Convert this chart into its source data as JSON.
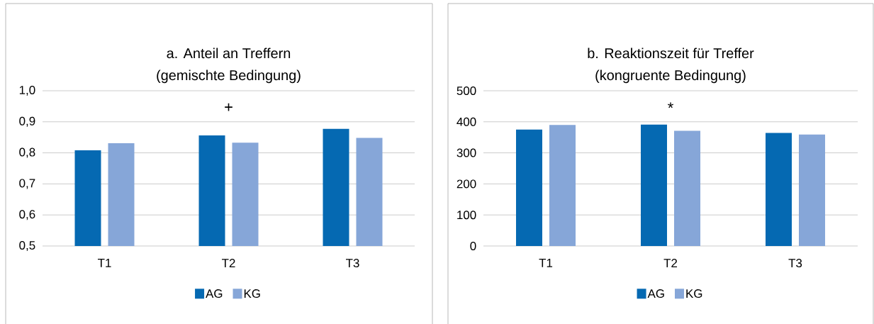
{
  "chart_data": [
    {
      "type": "bar",
      "title": "a. Anteil an Treffern",
      "subtitle": "(gemischte Bedingung)",
      "categories": [
        "T1",
        "T2",
        "T3"
      ],
      "series": [
        {
          "name": "AG",
          "color": "#0569b2",
          "values": [
            0.808,
            0.856,
            0.877
          ]
        },
        {
          "name": "KG",
          "color": "#86a6d8",
          "values": [
            0.831,
            0.833,
            0.848
          ]
        }
      ],
      "ylim": [
        0.5,
        1.0
      ],
      "yticks": [
        {
          "value": 0.5,
          "label": "0,5"
        },
        {
          "value": 0.6,
          "label": "0,6"
        },
        {
          "value": 0.7,
          "label": "0,7"
        },
        {
          "value": 0.8,
          "label": "0,8"
        },
        {
          "value": 0.9,
          "label": "0,9"
        },
        {
          "value": 1.0,
          "label": "1,0"
        }
      ],
      "grid": "y",
      "legend": "bottom",
      "annotations": [
        "+"
      ]
    },
    {
      "type": "bar",
      "title": "b. Reaktionszeit für Treffer",
      "subtitle": "(kongruente Bedingung)",
      "categories": [
        "T1",
        "T2",
        "T3"
      ],
      "series": [
        {
          "name": "AG",
          "color": "#0569b2",
          "values": [
            375,
            391,
            364
          ]
        },
        {
          "name": "KG",
          "color": "#86a6d8",
          "values": [
            390,
            371,
            359
          ]
        }
      ],
      "ylim": [
        0,
        500
      ],
      "yticks": [
        0,
        100,
        200,
        300,
        400,
        500
      ],
      "grid": "y",
      "legend": "bottom",
      "annotations": [
        "*"
      ]
    }
  ]
}
